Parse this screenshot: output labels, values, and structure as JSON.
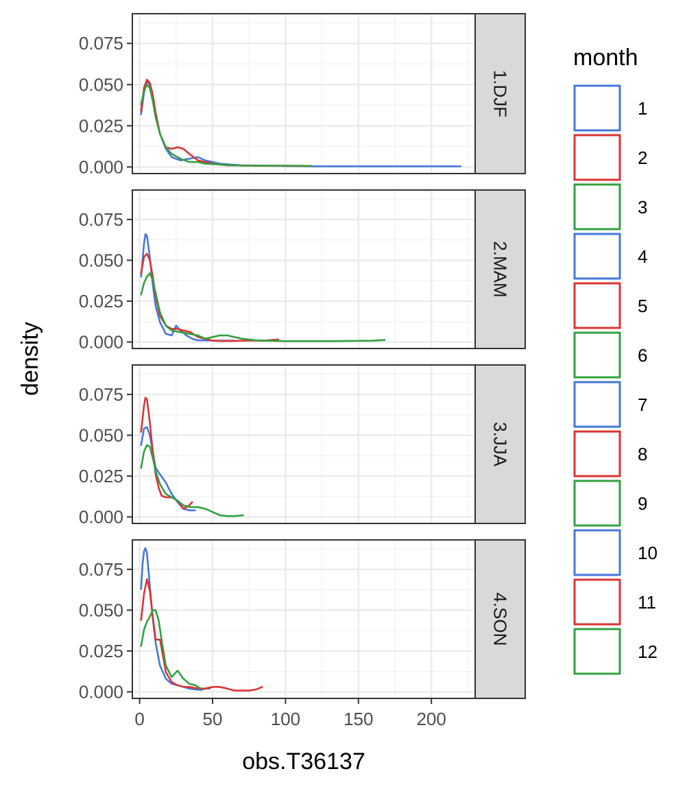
{
  "chart_data": {
    "type": "line",
    "xlabel": "obs.T36137",
    "ylabel": "density",
    "x_ticks": [
      "0",
      "50",
      "100",
      "150",
      "200"
    ],
    "y_ticks": [
      "0.000",
      "0.025",
      "0.050",
      "0.075"
    ],
    "xlim": [
      -5,
      230
    ],
    "ylim": [
      -0.004,
      0.093
    ],
    "legend": {
      "title": "month",
      "placement": "right",
      "entries": [
        "1",
        "2",
        "3",
        "4",
        "5",
        "6",
        "7",
        "8",
        "9",
        "10",
        "11",
        "12"
      ],
      "colors": [
        "#4477dd",
        "#dd3333",
        "#33a040",
        "#4477dd",
        "#dd3333",
        "#33a040",
        "#4477dd",
        "#dd3333",
        "#33a040",
        "#4477dd",
        "#dd3333",
        "#33a040"
      ]
    },
    "panels": [
      {
        "label": "1.DJF",
        "series": [
          {
            "color": "#4477dd",
            "x": [
              1,
              3,
              5,
              7,
              9,
              11,
              14,
              18,
              22,
              28,
              34,
              40,
              45,
              55,
              70,
              90,
              120,
              160,
              220
            ],
            "y": [
              0.032,
              0.045,
              0.052,
              0.05,
              0.042,
              0.032,
              0.02,
              0.011,
              0.006,
              0.004,
              0.005,
              0.006,
              0.004,
              0.002,
              0.001,
              0.0007,
              0.0004,
              0.0004,
              0.0004
            ]
          },
          {
            "color": "#dd3333",
            "x": [
              1,
              3,
              5,
              7,
              9,
              11,
              14,
              18,
              22,
              26,
              30,
              34,
              40,
              50,
              60,
              80,
              100,
              118
            ],
            "y": [
              0.034,
              0.048,
              0.053,
              0.051,
              0.044,
              0.033,
              0.02,
              0.012,
              0.011,
              0.012,
              0.011,
              0.008,
              0.004,
              0.002,
              0.001,
              0.0007,
              0.0007,
              0.0006
            ]
          },
          {
            "color": "#33a040",
            "x": [
              1,
              3,
              5,
              7,
              9,
              11,
              14,
              18,
              22,
              28,
              34,
              40,
              45,
              55,
              70,
              90,
              110,
              118
            ],
            "y": [
              0.038,
              0.046,
              0.05,
              0.048,
              0.04,
              0.03,
              0.02,
              0.012,
              0.008,
              0.005,
              0.003,
              0.003,
              0.002,
              0.0015,
              0.0008,
              0.0008,
              0.0008,
              0.0006
            ]
          }
        ]
      },
      {
        "label": "2.MAM",
        "series": [
          {
            "color": "#4477dd",
            "x": [
              1,
              3,
              4,
              5,
              7,
              9,
              11,
              14,
              18,
              22,
              25,
              28,
              32,
              36,
              40,
              45,
              55,
              65
            ],
            "y": [
              0.04,
              0.06,
              0.066,
              0.065,
              0.052,
              0.035,
              0.022,
              0.012,
              0.005,
              0.004,
              0.01,
              0.007,
              0.004,
              0.002,
              0.001,
              0.001,
              0.0008,
              0.0008
            ]
          },
          {
            "color": "#dd3333",
            "x": [
              1,
              3,
              5,
              7,
              9,
              11,
              14,
              18,
              22,
              26,
              30,
              35,
              40,
              45,
              50,
              55,
              65,
              75,
              85,
              95
            ],
            "y": [
              0.042,
              0.052,
              0.054,
              0.05,
              0.04,
              0.028,
              0.016,
              0.01,
              0.008,
              0.008,
              0.007,
              0.006,
              0.003,
              0.002,
              0.0008,
              0.0006,
              0.0006,
              0.0009,
              0.0008,
              0.0015
            ]
          },
          {
            "color": "#33a040",
            "x": [
              1,
              3,
              5,
              7,
              9,
              11,
              14,
              18,
              22,
              28,
              34,
              40,
              45,
              50,
              55,
              60,
              65,
              70,
              80,
              100,
              130,
              160,
              168
            ],
            "y": [
              0.029,
              0.036,
              0.04,
              0.042,
              0.038,
              0.03,
              0.018,
              0.01,
              0.007,
              0.006,
              0.005,
              0.004,
              0.002,
              0.003,
              0.004,
              0.004,
              0.003,
              0.002,
              0.001,
              0.0005,
              0.0005,
              0.0008,
              0.0012
            ]
          }
        ]
      },
      {
        "label": "3.JJA",
        "series": [
          {
            "color": "#4477dd",
            "x": [
              1,
              3,
              5,
              7,
              9,
              11,
              14,
              18,
              22,
              26,
              30,
              34,
              38
            ],
            "y": [
              0.044,
              0.054,
              0.055,
              0.05,
              0.04,
              0.03,
              0.026,
              0.021,
              0.014,
              0.009,
              0.005,
              0.004,
              0.004
            ]
          },
          {
            "color": "#dd3333",
            "x": [
              1,
              3,
              4,
              5,
              7,
              9,
              11,
              13,
              15,
              18,
              22,
              26,
              30,
              34,
              36
            ],
            "y": [
              0.052,
              0.068,
              0.073,
              0.072,
              0.058,
              0.04,
              0.026,
              0.018,
              0.013,
              0.012,
              0.012,
              0.01,
              0.005,
              0.007,
              0.009
            ]
          },
          {
            "color": "#33a040",
            "x": [
              1,
              3,
              5,
              7,
              9,
              11,
              14,
              18,
              22,
              26,
              30,
              35,
              40,
              45,
              50,
              55,
              60,
              65,
              71
            ],
            "y": [
              0.03,
              0.04,
              0.044,
              0.043,
              0.036,
              0.028,
              0.02,
              0.014,
              0.012,
              0.01,
              0.007,
              0.006,
              0.006,
              0.005,
              0.003,
              0.001,
              0.0005,
              0.0005,
              0.001
            ]
          }
        ]
      },
      {
        "label": "4.SON",
        "series": [
          {
            "color": "#4477dd",
            "x": [
              1,
              2,
              3,
              4,
              5,
              7,
              9,
              11,
              14,
              18,
              22,
              26,
              30,
              34,
              38,
              42,
              45,
              48
            ],
            "y": [
              0.063,
              0.078,
              0.086,
              0.088,
              0.085,
              0.065,
              0.045,
              0.03,
              0.016,
              0.008,
              0.005,
              0.004,
              0.003,
              0.002,
              0.0015,
              0.0012,
              0.002,
              0.002
            ]
          },
          {
            "color": "#dd3333",
            "x": [
              1,
              3,
              5,
              7,
              9,
              11,
              14,
              18,
              22,
              26,
              30,
              34,
              40,
              45,
              50,
              55,
              60,
              65,
              70,
              75,
              80,
              84
            ],
            "y": [
              0.044,
              0.06,
              0.069,
              0.062,
              0.046,
              0.032,
              0.032,
              0.012,
              0.006,
              0.004,
              0.003,
              0.003,
              0.002,
              0.002,
              0.003,
              0.003,
              0.002,
              0.0008,
              0.0008,
              0.0008,
              0.0015,
              0.003
            ]
          },
          {
            "color": "#33a040",
            "x": [
              1,
              3,
              5,
              7,
              9,
              11,
              13,
              15,
              18,
              22,
              26,
              30,
              34,
              38,
              42
            ],
            "y": [
              0.028,
              0.038,
              0.043,
              0.046,
              0.05,
              0.05,
              0.044,
              0.032,
              0.016,
              0.009,
              0.013,
              0.008,
              0.005,
              0.004,
              0.002
            ]
          }
        ]
      }
    ]
  }
}
